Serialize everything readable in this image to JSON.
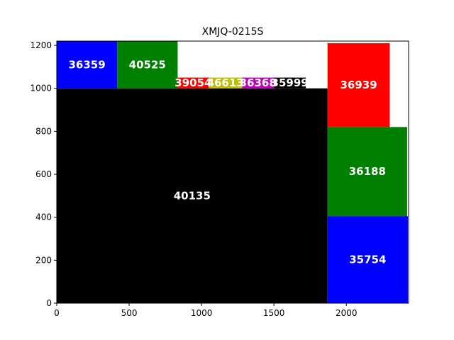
{
  "chart_data": {
    "type": "treemap",
    "title": "XMJQ-0215S",
    "xlim": [
      0,
      2430
    ],
    "ylim": [
      0,
      1220
    ],
    "x_ticks": [
      0,
      500,
      1000,
      1500,
      2000
    ],
    "y_ticks": [
      0,
      200,
      400,
      600,
      800,
      1000,
      1200
    ],
    "rects": [
      {
        "label": "40135",
        "x0": 0,
        "x1": 1870,
        "y0": 0,
        "y1": 1000,
        "color": "#000000"
      },
      {
        "label": "36359",
        "x0": 0,
        "x1": 417,
        "y0": 1000,
        "y1": 1220,
        "color": "#0000ff"
      },
      {
        "label": "40525",
        "x0": 417,
        "x1": 835,
        "y0": 1000,
        "y1": 1220,
        "color": "#008000"
      },
      {
        "label": "39054",
        "x0": 835,
        "x1": 1050,
        "y0": 1000,
        "y1": 1050,
        "color": "#ff0000"
      },
      {
        "label": "46613",
        "x0": 1050,
        "x1": 1280,
        "y0": 1000,
        "y1": 1050,
        "color": "#bfbf00"
      },
      {
        "label": "36368",
        "x0": 1280,
        "x1": 1500,
        "y0": 1000,
        "y1": 1050,
        "color": "#bf00bf"
      },
      {
        "label": "35999",
        "x0": 1500,
        "x1": 1720,
        "y0": 1000,
        "y1": 1050,
        "color": "#000000"
      },
      {
        "label": "36939",
        "x0": 1870,
        "x1": 2300,
        "y0": 820,
        "y1": 1210,
        "color": "#ff0000"
      },
      {
        "label": "36188",
        "x0": 1870,
        "x1": 2420,
        "y0": 405,
        "y1": 820,
        "color": "#008000"
      },
      {
        "label": "35754",
        "x0": 1870,
        "x1": 2425,
        "y0": 0,
        "y1": 405,
        "color": "#0000ff"
      }
    ]
  }
}
